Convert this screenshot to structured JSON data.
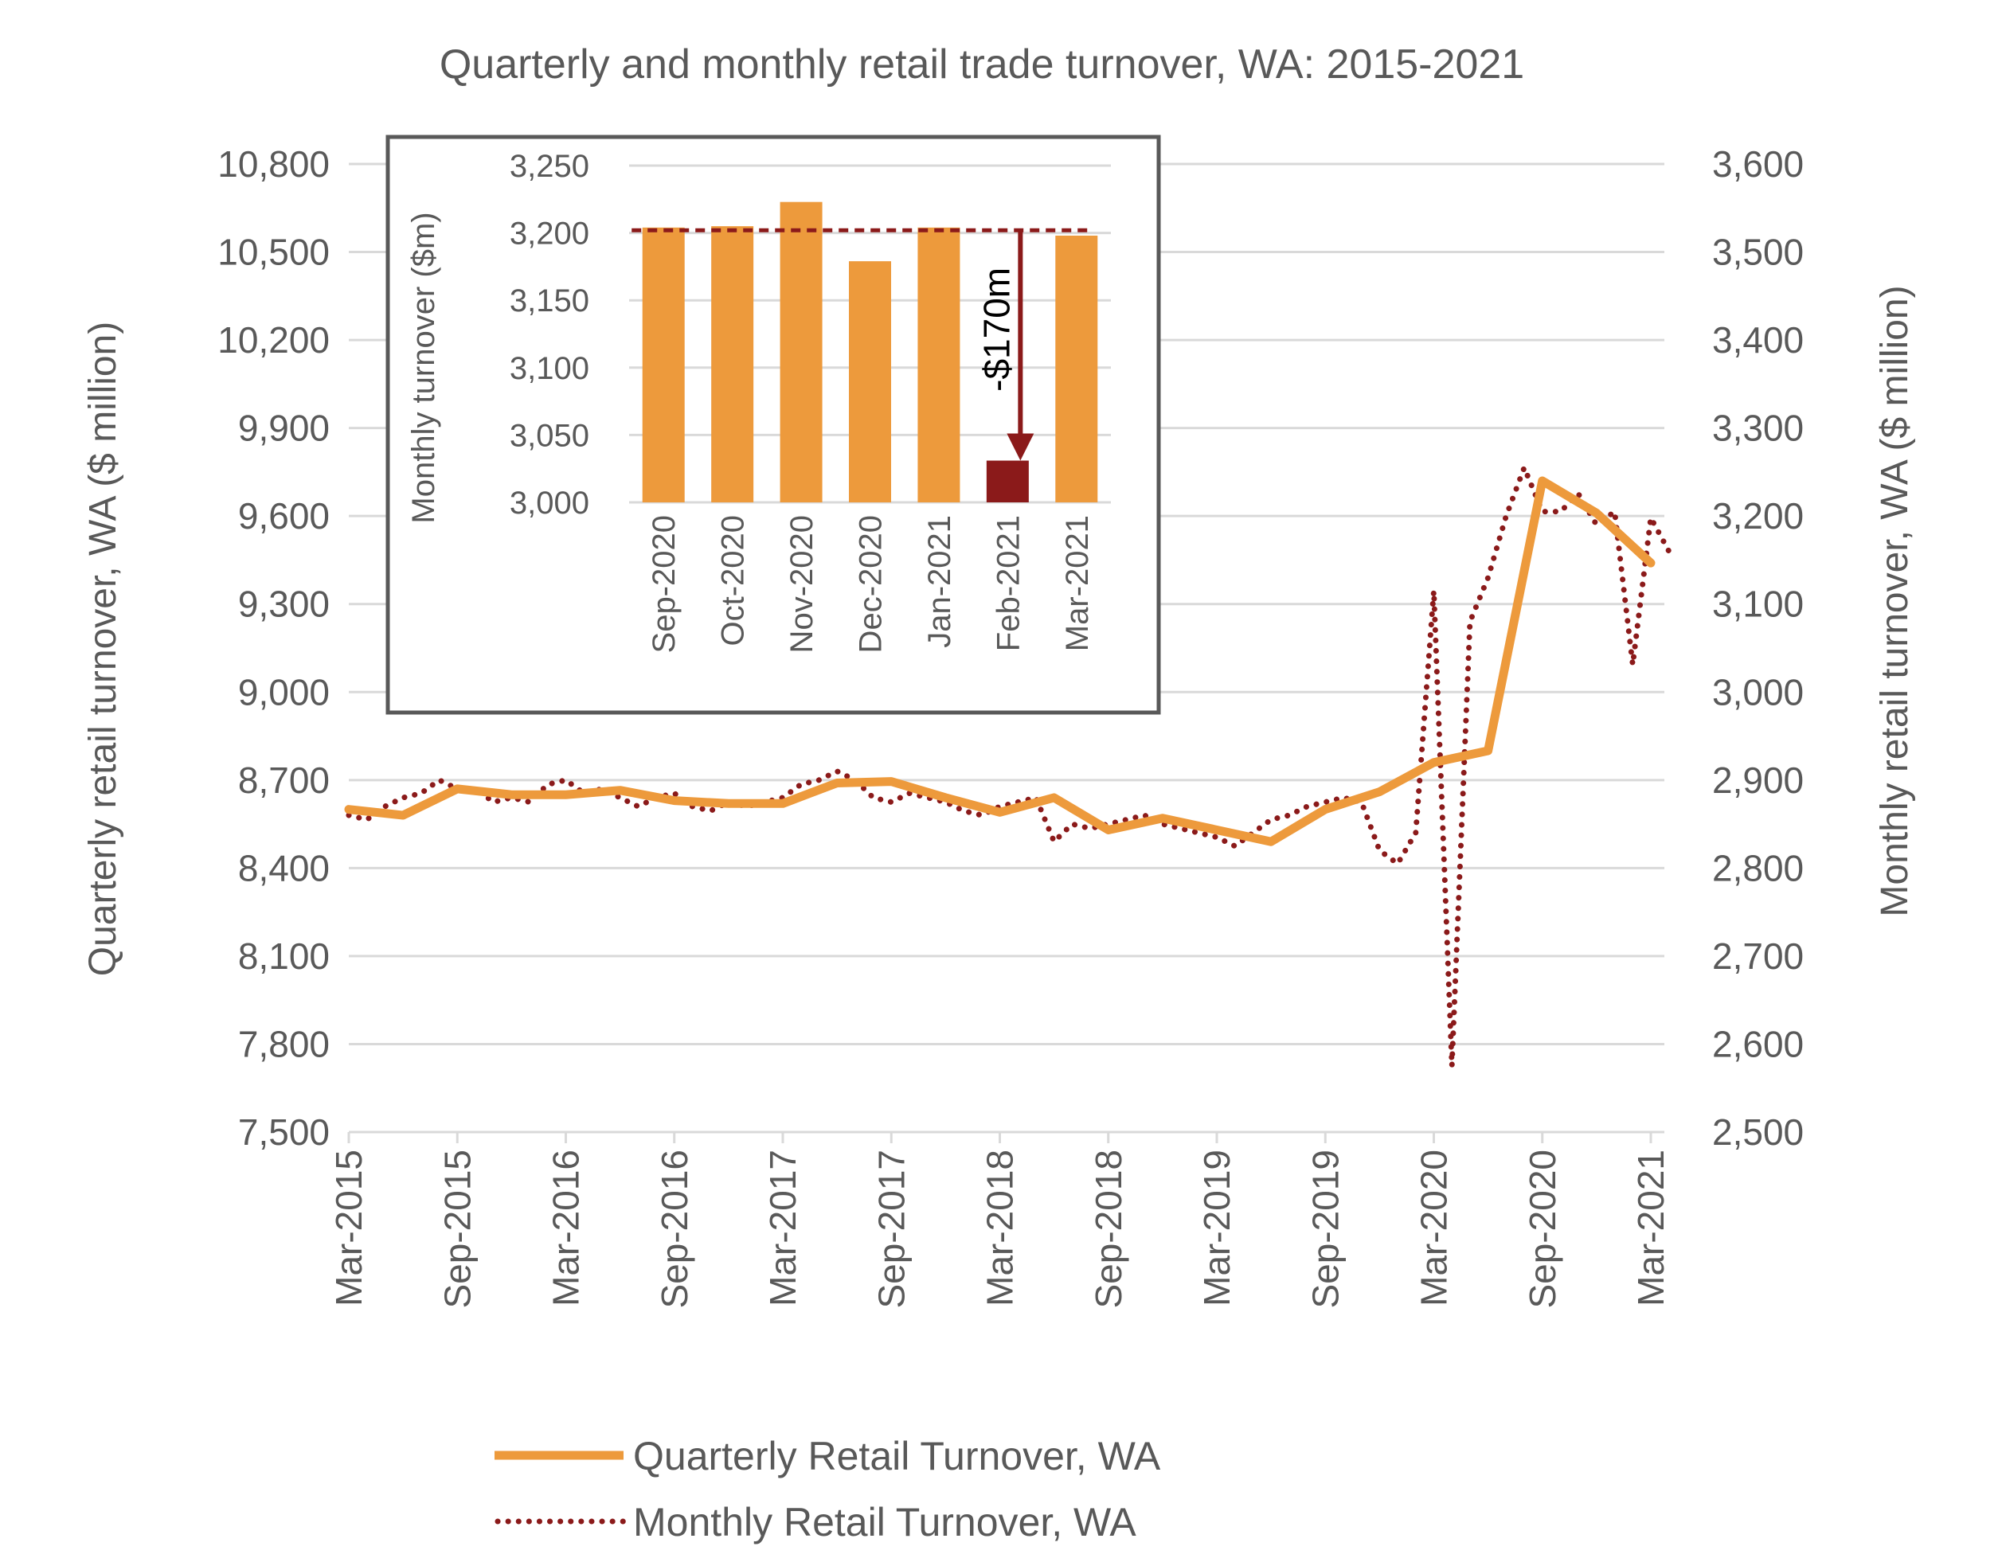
{
  "chart_data": {
    "type": "line",
    "title": "Quarterly and monthly retail trade turnover, WA: 2015-2021",
    "ylabel": "Quarterly retail turnover, WA ($ million)",
    "y2label": "Monthly retail turnover, WA ($ million)",
    "ylim": [
      7500,
      10800
    ],
    "y2lim": [
      2500,
      3600
    ],
    "yticks": [
      "7,500",
      "7,800",
      "8,100",
      "8,400",
      "8,700",
      "9,000",
      "9,300",
      "9,600",
      "9,900",
      "10,200",
      "10,500",
      "10,800"
    ],
    "y2ticks": [
      "2,500",
      "2,600",
      "2,700",
      "2,800",
      "2,900",
      "3,000",
      "3,100",
      "3,200",
      "3,300",
      "3,400",
      "3,500",
      "3,600"
    ],
    "xticks": [
      "Mar-2015",
      "Sep-2015",
      "Mar-2016",
      "Sep-2016",
      "Mar-2017",
      "Sep-2017",
      "Mar-2018",
      "Sep-2018",
      "Mar-2019",
      "Sep-2019",
      "Mar-2020",
      "Sep-2020",
      "Mar-2021"
    ],
    "grid": true,
    "legend_position": "bottom",
    "series": [
      {
        "name": "Quarterly Retail Turnover, WA",
        "axis": "left",
        "color": "#ED9A3C",
        "style": "solid",
        "start": "Mar-2015",
        "step_months": 3,
        "values": [
          8600,
          8580,
          8670,
          8650,
          8650,
          8665,
          8630,
          8620,
          8620,
          8690,
          8695,
          8640,
          8590,
          8640,
          8530,
          8570,
          8530,
          8490,
          8600,
          8660,
          8760,
          8800,
          9720,
          9610,
          9440
        ]
      },
      {
        "name": "Monthly Retail Turnover, WA",
        "axis": "right",
        "color": "#8B1A1A",
        "style": "dotted",
        "start": "Mar-2015",
        "step_months": 1,
        "values": [
          2860,
          2855,
          2870,
          2880,
          2885,
          2900,
          2890,
          2890,
          2875,
          2880,
          2875,
          2895,
          2900,
          2885,
          2890,
          2880,
          2870,
          2880,
          2885,
          2870,
          2865,
          2875,
          2870,
          2875,
          2880,
          2895,
          2900,
          2910,
          2900,
          2880,
          2875,
          2885,
          2880,
          2875,
          2865,
          2860,
          2870,
          2875,
          2880,
          2830,
          2850,
          2845,
          2850,
          2855,
          2860,
          2850,
          2845,
          2840,
          2835,
          2825,
          2840,
          2855,
          2860,
          2870,
          2875,
          2880,
          2875,
          2820,
          2805,
          2840,
          3115,
          2575,
          3080,
          3130,
          3200,
          3255,
          3205,
          3205,
          3225,
          3190,
          3205,
          3031,
          3198,
          3160
        ]
      }
    ],
    "inset": {
      "type": "bar",
      "ylabel": "Monthly turnover ($m)",
      "ylim": [
        3000,
        3250
      ],
      "yticks": [
        "3,000",
        "3,050",
        "3,100",
        "3,150",
        "3,200",
        "3,250"
      ],
      "categories": [
        "Sep-2020",
        "Oct-2020",
        "Nov-2020",
        "Dec-2020",
        "Jan-2021",
        "Feb-2021",
        "Mar-2021"
      ],
      "values": [
        3204,
        3205,
        3223,
        3179,
        3204,
        3031,
        3198
      ],
      "highlight_index": 5,
      "reference_value": 3202,
      "annotation": "-$170m",
      "bar_color": "#ED9A3C",
      "highlight_color": "#8B1A1A"
    }
  }
}
